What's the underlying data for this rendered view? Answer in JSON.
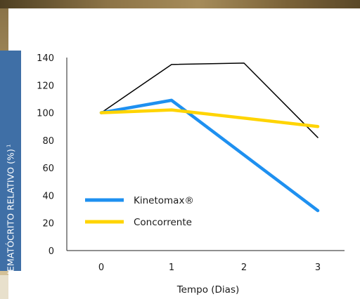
{
  "chart_data": {
    "type": "line",
    "ylabel": "HEMATÓCRITO RELATIVO (%)",
    "ylabel_superscript": "1",
    "xlabel": "Tempo (Dias)",
    "x": [
      0,
      1,
      2,
      3
    ],
    "xticks": [
      "0",
      "1",
      "2",
      "3"
    ],
    "ylim": [
      0,
      140
    ],
    "yticks": [
      "0",
      "20",
      "40",
      "60",
      "80",
      "100",
      "120",
      "140"
    ],
    "grid": false,
    "legend_position": "lower-left",
    "series": [
      {
        "name": "",
        "color": "#000000",
        "width": 1.5,
        "x": [
          0,
          1,
          2,
          3
        ],
        "values": [
          100,
          135,
          136,
          82
        ],
        "in_legend": false
      },
      {
        "name": "Kinetomax®",
        "color": "#1e90f0",
        "width": 4.5,
        "x": [
          0,
          1,
          2,
          3
        ],
        "values": [
          100,
          109,
          null,
          29
        ],
        "in_legend": true
      },
      {
        "name": "Concorrente",
        "color": "#ffd400",
        "width": 4.5,
        "x": [
          0,
          1,
          2,
          3
        ],
        "values": [
          100,
          102,
          null,
          90
        ],
        "in_legend": true
      }
    ]
  }
}
